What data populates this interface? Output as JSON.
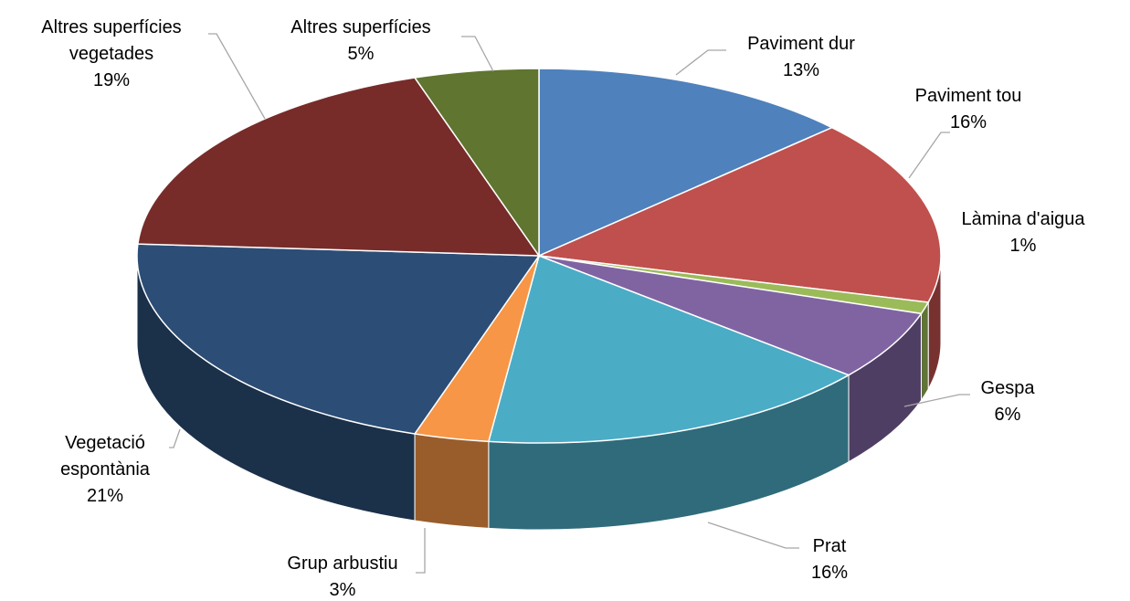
{
  "chart_data": {
    "type": "pie",
    "categories": [
      "Paviment dur",
      "Paviment tou",
      "Làmina d'aigua",
      "Gespa",
      "Prat",
      "Grup arbustiu",
      "Vegetació espontània",
      "Altres superfícies vegetades",
      "Altres superfícies"
    ],
    "values": [
      13,
      16,
      1,
      6,
      16,
      3,
      21,
      19,
      5
    ],
    "value_labels": [
      "13%",
      "16%",
      "1%",
      "6%",
      "16%",
      "3%",
      "21%",
      "19%",
      "5%"
    ],
    "colors": [
      "#4f81bd",
      "#c0504d",
      "#9bbb59",
      "#8064a2",
      "#4bacc6",
      "#f79646",
      "#2c4d75",
      "#772c2a",
      "#5f7530"
    ]
  }
}
